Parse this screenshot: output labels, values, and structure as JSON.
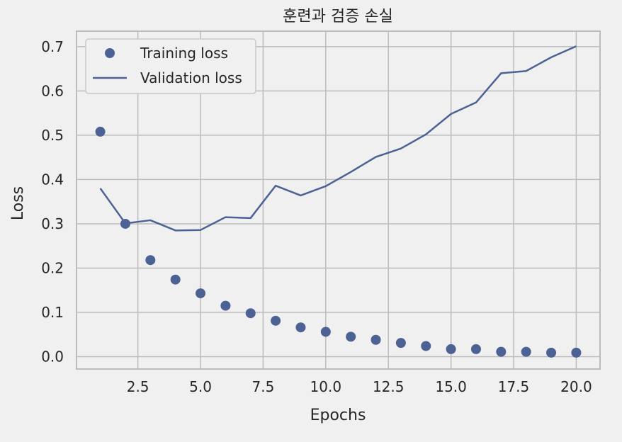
{
  "chart_data": {
    "type": "line",
    "title": "훈련과 검증 손실",
    "xlabel": "Epochs",
    "ylabel": "Loss",
    "xlim": [
      0.05,
      20.95
    ],
    "ylim": [
      -0.028,
      0.735
    ],
    "xticks": [
      2.5,
      5.0,
      7.5,
      10.0,
      12.5,
      15.0,
      17.5,
      20.0
    ],
    "xtick_labels": [
      "2.5",
      "5.0",
      "7.5",
      "10.0",
      "12.5",
      "15.0",
      "17.5",
      "20.0"
    ],
    "yticks": [
      0.0,
      0.1,
      0.2,
      0.3,
      0.4,
      0.5,
      0.6,
      0.7
    ],
    "ytick_labels": [
      "0.0",
      "0.1",
      "0.2",
      "0.3",
      "0.4",
      "0.5",
      "0.6",
      "0.7"
    ],
    "grid": true,
    "legend_position": "top-left",
    "x": [
      1,
      2,
      3,
      4,
      5,
      6,
      7,
      8,
      9,
      10,
      11,
      12,
      13,
      14,
      15,
      16,
      17,
      18,
      19,
      20
    ],
    "series": [
      {
        "name": "Training loss",
        "style": "markers",
        "color": "#4c6294",
        "values": [
          0.508,
          0.3,
          0.218,
          0.174,
          0.143,
          0.115,
          0.098,
          0.081,
          0.066,
          0.056,
          0.045,
          0.038,
          0.031,
          0.024,
          0.017,
          0.017,
          0.011,
          0.011,
          0.009,
          0.009
        ]
      },
      {
        "name": "Validation loss",
        "style": "line",
        "color": "#4c6294",
        "values": [
          0.38,
          0.301,
          0.308,
          0.285,
          0.286,
          0.315,
          0.313,
          0.386,
          0.364,
          0.385,
          0.417,
          0.451,
          0.47,
          0.502,
          0.548,
          0.574,
          0.64,
          0.645,
          0.676,
          0.701
        ]
      }
    ]
  }
}
